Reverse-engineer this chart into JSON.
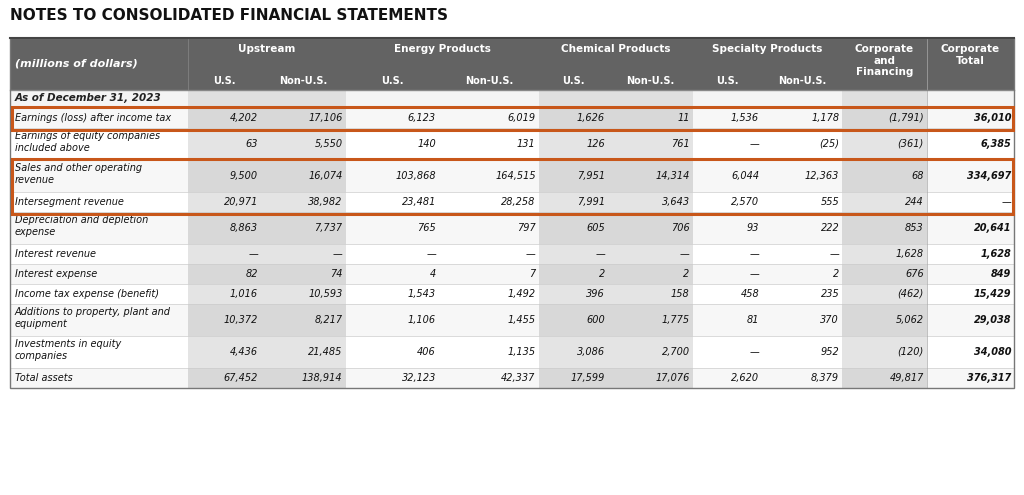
{
  "title": "NOTES TO CONSOLIDATED FINANCIAL STATEMENTS",
  "subtitle": "As of December 31, 2023",
  "background_color": "#ffffff",
  "header_bg": "#636363",
  "header_text_color": "#ffffff",
  "border_color": "#bbbbbb",
  "highlight_border_color": "#c8571a",
  "col0_header": "(millions of dollars)",
  "shaded_cols": [
    1,
    2,
    5,
    6,
    9
  ],
  "shaded_col_color": "#e0e0e0",
  "normal_col_color": "#ffffff",
  "group_configs": [
    {
      "label": "Upstream",
      "cols": [
        1,
        2
      ],
      "sub": [
        "U.S.",
        "Non-U.S."
      ]
    },
    {
      "label": "Energy Products",
      "cols": [
        3,
        4
      ],
      "sub": [
        "U.S.",
        "Non-U.S."
      ]
    },
    {
      "label": "Chemical Products",
      "cols": [
        5,
        6
      ],
      "sub": [
        "U.S.",
        "Non-U.S."
      ]
    },
    {
      "label": "Specialty Products",
      "cols": [
        7,
        8
      ],
      "sub": [
        "U.S.",
        "Non-U.S."
      ]
    },
    {
      "label": "Corporate\nand\nFinancing",
      "cols": [
        9
      ],
      "sub": []
    },
    {
      "label": "Corporate\nTotal",
      "cols": [
        10
      ],
      "sub": []
    }
  ],
  "col_widths_rel": [
    2.0,
    0.82,
    0.95,
    1.05,
    1.12,
    0.78,
    0.95,
    0.78,
    0.9,
    0.95,
    0.98
  ],
  "rows": [
    {
      "label": "Earnings (loss) after income tax",
      "values": [
        "4,202",
        "17,106",
        "6,123",
        "6,019",
        "1,626",
        "11",
        "1,536",
        "1,178",
        "(1,791)",
        "36,010"
      ],
      "bold_last": true,
      "orange_box": "A",
      "two_line": false
    },
    {
      "label": "Earnings of equity companies\nincluded above",
      "values": [
        "63",
        "5,550",
        "140",
        "131",
        "126",
        "761",
        "—",
        "(25)",
        "(361)",
        "6,385"
      ],
      "bold_last": true,
      "orange_box": "",
      "two_line": true
    },
    {
      "label": "Sales and other operating\nrevenue",
      "values": [
        "9,500",
        "16,074",
        "103,868",
        "164,515",
        "7,951",
        "14,314",
        "6,044",
        "12,363",
        "68",
        "334,697"
      ],
      "bold_last": true,
      "orange_box": "B",
      "two_line": true
    },
    {
      "label": "Intersegment revenue",
      "values": [
        "20,971",
        "38,982",
        "23,481",
        "28,258",
        "7,991",
        "3,643",
        "2,570",
        "555",
        "244",
        "—"
      ],
      "bold_last": false,
      "orange_box": "B",
      "two_line": false
    },
    {
      "label": "Depreciation and depletion\nexpense",
      "values": [
        "8,863",
        "7,737",
        "765",
        "797",
        "605",
        "706",
        "93",
        "222",
        "853",
        "20,641"
      ],
      "bold_last": true,
      "orange_box": "",
      "two_line": true
    },
    {
      "label": "Interest revenue",
      "values": [
        "—",
        "—",
        "—",
        "—",
        "—",
        "—",
        "—",
        "—",
        "1,628",
        "1,628"
      ],
      "bold_last": true,
      "orange_box": "",
      "two_line": false
    },
    {
      "label": "Interest expense",
      "values": [
        "82",
        "74",
        "4",
        "7",
        "2",
        "2",
        "—",
        "2",
        "676",
        "849"
      ],
      "bold_last": true,
      "orange_box": "",
      "two_line": false
    },
    {
      "label": "Income tax expense (benefit)",
      "values": [
        "1,016",
        "10,593",
        "1,543",
        "1,492",
        "396",
        "158",
        "458",
        "235",
        "(462)",
        "15,429"
      ],
      "bold_last": true,
      "orange_box": "",
      "two_line": false
    },
    {
      "label": "Additions to property, plant and\nequipment",
      "values": [
        "10,372",
        "8,217",
        "1,106",
        "1,455",
        "600",
        "1,775",
        "81",
        "370",
        "5,062",
        "29,038"
      ],
      "bold_last": true,
      "orange_box": "",
      "two_line": true
    },
    {
      "label": "Investments in equity\ncompanies",
      "values": [
        "4,436",
        "21,485",
        "406",
        "1,135",
        "3,086",
        "2,700",
        "—",
        "952",
        "(120)",
        "34,080"
      ],
      "bold_last": true,
      "orange_box": "",
      "two_line": true
    },
    {
      "label": "Total assets",
      "values": [
        "67,452",
        "138,914",
        "32,123",
        "42,337",
        "17,599",
        "17,076",
        "2,620",
        "8,379",
        "49,817",
        "376,317"
      ],
      "bold_last": true,
      "orange_box": "",
      "two_line": false
    }
  ]
}
